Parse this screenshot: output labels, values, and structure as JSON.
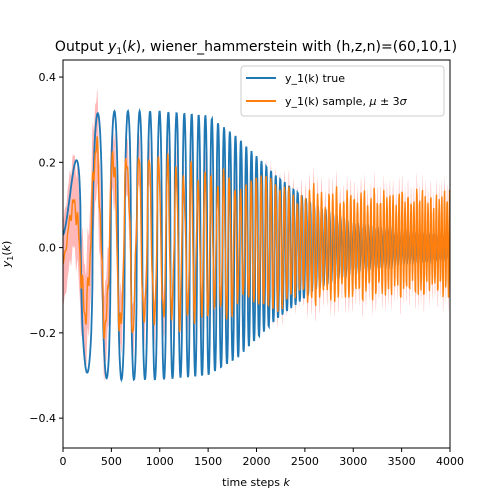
{
  "chart_data": {
    "type": "line",
    "title": "Output y_1(k), wiener_hammerstein with (h,z,n)=(60,10,1)",
    "xlabel": "time steps k",
    "ylabel": "y_1(k)",
    "xlim": [
      0,
      4000
    ],
    "ylim": [
      -0.47,
      0.44
    ],
    "xticks": [
      0,
      500,
      1000,
      1500,
      2000,
      2500,
      3000,
      3500,
      4000
    ],
    "xtick_labels": [
      "0",
      "500",
      "1000",
      "1500",
      "2000",
      "2500",
      "3000",
      "3500",
      "4000"
    ],
    "yticks": [
      -0.4,
      -0.2,
      0.0,
      0.2,
      0.4
    ],
    "ytick_labels": [
      "−0.4",
      "−0.2",
      "0.0",
      "0.2",
      "0.4"
    ],
    "grid": false,
    "legend_position": "top-right",
    "series": [
      {
        "name": "y_1(k) true",
        "color": "#1f77b4",
        "description_points": {
          "envelope_k": [
            0,
            200,
            500,
            1000,
            1500,
            1800,
            2200,
            2600,
            3000,
            3500,
            4000
          ],
          "envelope_upper": [
            0.03,
            0.31,
            0.32,
            0.32,
            0.31,
            0.26,
            0.17,
            0.1,
            0.06,
            0.04,
            0.03
          ],
          "envelope_lower": [
            0.03,
            -0.29,
            -0.31,
            -0.31,
            -0.3,
            -0.26,
            -0.17,
            -0.1,
            -0.06,
            -0.04,
            -0.03
          ]
        }
      },
      {
        "name": "y_1(k) sample, μ ± 3σ",
        "color": "#ff7f0e",
        "band_color": "#ff9999",
        "description_points": {
          "envelope_k": [
            0,
            200,
            500,
            1000,
            1500,
            2000,
            2500,
            3000,
            3500,
            4000
          ],
          "envelope_upper": [
            -0.03,
            0.28,
            0.26,
            0.22,
            0.19,
            0.17,
            0.15,
            0.14,
            0.14,
            0.14
          ],
          "envelope_lower": [
            -0.06,
            -0.18,
            -0.24,
            -0.21,
            -0.18,
            -0.16,
            -0.14,
            -0.13,
            -0.12,
            -0.12
          ],
          "band_halfwidth_k": [
            0,
            300,
            600,
            1000,
            2000,
            3000,
            4000
          ],
          "band_halfwidth": [
            0.1,
            0.12,
            0.07,
            0.05,
            0.04,
            0.04,
            0.04
          ]
        }
      }
    ],
    "legend": [
      {
        "label": "y_1(k) true",
        "color": "#1f77b4"
      },
      {
        "label": "y_1(k) sample, μ ± 3σ",
        "color": "#ff7f0e"
      }
    ]
  }
}
